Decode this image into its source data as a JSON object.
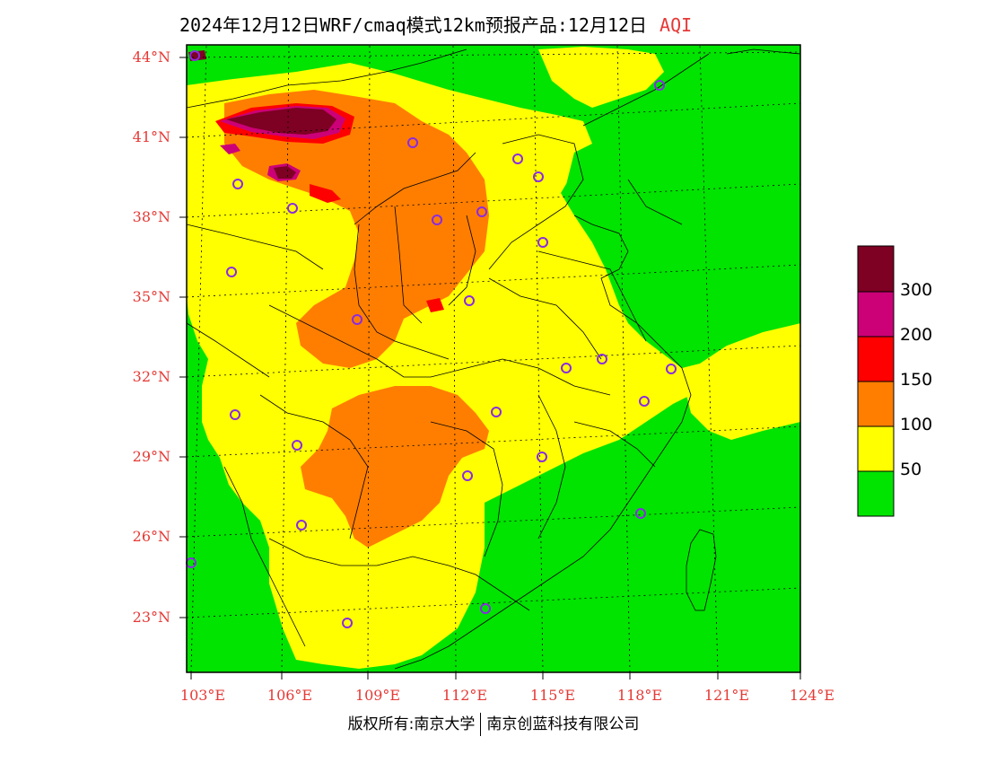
{
  "title": {
    "main": "2024年12月12日WRF/cmaq模式12km预报产品:12月12日",
    "variable": "AQI"
  },
  "map": {
    "lat_labels": [
      "44°N",
      "41°N",
      "38°N",
      "35°N",
      "32°N",
      "29°N",
      "26°N",
      "23°N"
    ],
    "lon_labels": [
      "103°E",
      "106°E",
      "109°E",
      "112°E",
      "115°E",
      "118°E",
      "121°E",
      "124°E"
    ],
    "lat_range": [
      21,
      44.5
    ],
    "lon_range": [
      102.8,
      124
    ]
  },
  "legend": {
    "levels": [
      {
        "color": "#00e400",
        "label": "50"
      },
      {
        "color": "#ffff00",
        "label": "100"
      },
      {
        "color": "#ff7e00",
        "label": "150"
      },
      {
        "color": "#ff0000",
        "label": "200"
      },
      {
        "color": "#cc0077",
        "label": "300"
      },
      {
        "color": "#7e0023",
        "label": ""
      }
    ]
  },
  "colors": {
    "good": "#00e400",
    "moderate": "#ffff00",
    "usg": "#ff7e00",
    "unhealthy": "#ff0000",
    "very_unhealthy": "#cc0077",
    "hazardous": "#7e0023",
    "city_marker": "#8a2be2",
    "axis_label": "#e53935"
  },
  "footer": {
    "left": "版权所有:南京大学",
    "right": "南京创蓝科技有限公司"
  }
}
